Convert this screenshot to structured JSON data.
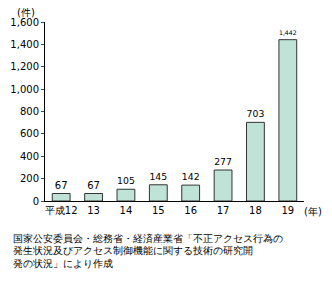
{
  "chart_data": {
    "type": "bar",
    "categories": [
      "平成12",
      "13",
      "14",
      "15",
      "16",
      "17",
      "18",
      "19"
    ],
    "values": [
      67,
      67,
      105,
      145,
      142,
      277,
      703,
      1442
    ],
    "color": "#bfe3d6",
    "ylim": [
      0,
      1600
    ],
    "yticks": [
      0,
      200,
      400,
      600,
      800,
      {
        "value": 1000,
        "label": "1,000"
      },
      {
        "value": 1200,
        "label": "1,200"
      },
      {
        "value": 1400,
        "label": "1,400"
      },
      {
        "value": 1600,
        "label": "1,600"
      }
    ],
    "ylabel": "(件)",
    "xlabel": "(年)",
    "data_labels": true,
    "value_labels": [
      "67",
      "67",
      "105",
      "145",
      "142",
      "277",
      "703",
      "1,442"
    ],
    "grid": false,
    "source": [
      "国家公安委員会・総務省・経済産業省「不正アクセス行為の",
      "発生状況及びアクセス制御機能に関する技術の研究開",
      "発の状況」により作成"
    ]
  }
}
